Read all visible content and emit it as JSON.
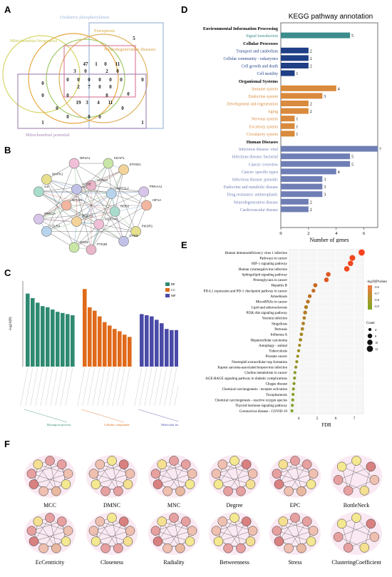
{
  "panel_labels": {
    "a": "A",
    "b": "B",
    "c": "C",
    "d": "D",
    "e": "E",
    "f": "F"
  },
  "venn": {
    "sets": [
      {
        "name": "Oxidative phosphorylation",
        "color": "#9fb6d9"
      },
      {
        "name": "Ferroptosis",
        "color": "#d8a838"
      },
      {
        "name": "Mitochondrial biogenesis",
        "color": "#d6d66a"
      },
      {
        "name": "Neurodegenerative diseases",
        "color": "#e0b060"
      },
      {
        "name": "Mitochondrial potential",
        "color": "#a88ab8"
      }
    ],
    "counts": [
      "0",
      "5",
      "0",
      "47",
      "1",
      "0",
      "11",
      "3",
      "0",
      "2",
      "0",
      "0",
      "0",
      "0",
      "0",
      "0",
      "0",
      "2",
      "7",
      "0",
      "0",
      "0",
      "0",
      "19",
      "3",
      "4",
      "11",
      "8",
      "0",
      "0",
      "0",
      "1",
      "0",
      "1",
      "0",
      "0"
    ]
  },
  "network": {
    "nodes": [
      "ACACA",
      "KEAP1",
      "STING1",
      "NFE2L2",
      "PRKAA1",
      "HIF1A",
      "NOS2",
      "PIK3R1",
      "CTSD",
      "SQSTM1",
      "PTK2B",
      "SOD2",
      "FOXO1",
      "TLR4",
      "PRKCA",
      "NFKB1",
      "IL6",
      "MAPK1",
      "APOE",
      "NR4A1"
    ]
  },
  "go_chart": {
    "legend": [
      {
        "name": "BP",
        "color": "#2f8a72"
      },
      {
        "name": "CC",
        "color": "#e06a1a"
      },
      {
        "name": "MF",
        "color": "#4a4aa8"
      }
    ],
    "ylabel": "-log10(P)",
    "group_labels": [
      "Biological process",
      "Cellular component",
      "Molecular function"
    ]
  },
  "chart_data": [
    {
      "type": "bar",
      "title": "KEGG pathway annotation",
      "xlabel": "Number of genes",
      "xlim": [
        0,
        7
      ],
      "xticks": [
        "0",
        "2",
        "4",
        "6"
      ],
      "groups": [
        {
          "name": "Environmental Information Processing",
          "color": "#3d8c8c",
          "items": [
            {
              "label": "Signal transduction",
              "value": 5
            }
          ]
        },
        {
          "name": "Cellular Processes",
          "color": "#1f3f86",
          "items": [
            {
              "label": "Transport and catabolism",
              "value": 2
            },
            {
              "label": "Cellular community - eukaryotes",
              "value": 2
            },
            {
              "label": "Cell growth and death",
              "value": 2
            },
            {
              "label": "Cell motility",
              "value": 1
            }
          ]
        },
        {
          "name": "Organismal Systems",
          "color": "#d98a3c",
          "items": [
            {
              "label": "Immune system",
              "value": 4
            },
            {
              "label": "Endocrine system",
              "value": 3
            },
            {
              "label": "Development and regeneration",
              "value": 2
            },
            {
              "label": "Aging",
              "value": 2
            },
            {
              "label": "Nervous system",
              "value": 1
            },
            {
              "label": "Excretory system",
              "value": 1
            },
            {
              "label": "Circulatory system",
              "value": 1
            }
          ]
        },
        {
          "name": "Human Diseases",
          "color": "#6f7fb5",
          "items": [
            {
              "label": "Infectious disease: viral",
              "value": 7
            },
            {
              "label": "Infectious disease: bacterial",
              "value": 5
            },
            {
              "label": "Cancer: overview",
              "value": 5
            },
            {
              "label": "Cancer: specific types",
              "value": 4
            },
            {
              "label": "Infectious disease: parasitic",
              "value": 3
            },
            {
              "label": "Endocrine and metabolic disease",
              "value": 3
            },
            {
              "label": "Drug resistance: antineoplastic",
              "value": 3
            },
            {
              "label": "Neurodegenerative disease",
              "value": 2
            },
            {
              "label": "Cardiovascular disease",
              "value": 2
            }
          ]
        }
      ]
    },
    {
      "type": "scatter",
      "xlabel": "FDR",
      "xlim": [
        3.5,
        7.5
      ],
      "xticks": [
        "4",
        "5",
        "6",
        "7"
      ],
      "legend_color_title": "-log10(Pvalue)",
      "legend_color_ticks": [
        "-0.6",
        "-0.7",
        "-0.8",
        "-0.9"
      ],
      "legend_size_title": "Count",
      "legend_size_ticks": [
        "4",
        "8",
        "10",
        "12"
      ],
      "points": [
        {
          "label": "Human immunodeficiency virus 1 infection",
          "x": 7.4,
          "count": 12,
          "p": 0.95
        },
        {
          "label": "Pathways in cancer",
          "x": 6.9,
          "count": 11,
          "p": 0.9
        },
        {
          "label": "HIF-1 signaling pathway",
          "x": 6.8,
          "count": 10,
          "p": 0.9
        },
        {
          "label": "Human cytomegalovirus infection",
          "x": 6.6,
          "count": 10,
          "p": 0.88
        },
        {
          "label": "Sphingolipid signaling pathway",
          "x": 5.6,
          "count": 8,
          "p": 0.75
        },
        {
          "label": "Proteoglycans in cancer",
          "x": 5.5,
          "count": 8,
          "p": 0.75
        },
        {
          "label": "Hepatitis B",
          "x": 4.9,
          "count": 7,
          "p": 0.6
        },
        {
          "label": "PD-L1 expression and PD-1 checkpoint pathway in cancer",
          "x": 4.8,
          "count": 6,
          "p": 0.55
        },
        {
          "label": "Amoebiasis",
          "x": 4.6,
          "count": 6,
          "p": 0.5
        },
        {
          "label": "MicroRNAs in cancer",
          "x": 4.5,
          "count": 6,
          "p": 0.5
        },
        {
          "label": "Lipid and atherosclerosis",
          "x": 4.4,
          "count": 6,
          "p": 0.45
        },
        {
          "label": "PI3K-Akt signaling pathway",
          "x": 4.35,
          "count": 6,
          "p": 0.45
        },
        {
          "label": "Yersinia infection",
          "x": 4.3,
          "count": 5,
          "p": 0.4
        },
        {
          "label": "Shigellosis",
          "x": 4.25,
          "count": 5,
          "p": 0.4
        },
        {
          "label": "Pertussis",
          "x": 4.2,
          "count": 5,
          "p": 0.35
        },
        {
          "label": "Influenza A",
          "x": 4.15,
          "count": 5,
          "p": 0.35
        },
        {
          "label": "Hepatocellular carcinoma",
          "x": 4.1,
          "count": 5,
          "p": 0.3
        },
        {
          "label": "Autophagy - animal",
          "x": 4.05,
          "count": 4,
          "p": 0.3
        },
        {
          "label": "Tuberculosis",
          "x": 4.0,
          "count": 4,
          "p": 0.25
        },
        {
          "label": "Prostate cancer",
          "x": 3.95,
          "count": 4,
          "p": 0.25
        },
        {
          "label": "Neutrophil extracellular trap formation",
          "x": 3.9,
          "count": 4,
          "p": 0.2
        },
        {
          "label": "Kaposi sarcoma-associated herpesvirus infection",
          "x": 3.85,
          "count": 4,
          "p": 0.2
        },
        {
          "label": "Choline metabolism in cancer",
          "x": 3.8,
          "count": 4,
          "p": 0.15
        },
        {
          "label": "AGE-RAGE signaling pathway in diabetic complications",
          "x": 3.78,
          "count": 4,
          "p": 0.15
        },
        {
          "label": "Chagas disease",
          "x": 3.75,
          "count": 4,
          "p": 0.12
        },
        {
          "label": "Chemical carcinogenesis - receptor activation",
          "x": 3.72,
          "count": 4,
          "p": 0.1
        },
        {
          "label": "Toxoplasmosis",
          "x": 3.7,
          "count": 4,
          "p": 0.1
        },
        {
          "label": "Chemical carcinogenesis - reactive oxygen species",
          "x": 3.68,
          "count": 4,
          "p": 0.08
        },
        {
          "label": "Thyroid hormone signaling pathway",
          "x": 3.66,
          "count": 4,
          "p": 0.05
        },
        {
          "label": "Coronavirus disease - COVID-19",
          "x": 3.64,
          "count": 4,
          "p": 0.05
        }
      ]
    }
  ],
  "hub_networks": [
    {
      "name": "MCC"
    },
    {
      "name": "DMNC"
    },
    {
      "name": "MNC"
    },
    {
      "name": "Degree"
    },
    {
      "name": "EPC"
    },
    {
      "name": "BottleNeck"
    },
    {
      "name": "EcCentricity"
    },
    {
      "name": "Closeness"
    },
    {
      "name": "Radiality"
    },
    {
      "name": "Betweenness"
    },
    {
      "name": "Stress"
    },
    {
      "name": "ClusteringCoefficient"
    }
  ]
}
